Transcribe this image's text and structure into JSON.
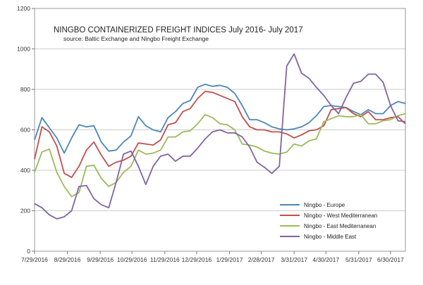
{
  "chart_data": {
    "type": "line",
    "title": "NINGBO CONTAINERIZED FREIGHT INDICES July 2016- July 2017",
    "subtitle": "source: Baltic  Exchange and Ningbo Freight Exchange",
    "xlabel": "",
    "ylabel": "",
    "ylim": [
      0,
      1200
    ],
    "yticks": [
      0,
      200,
      400,
      600,
      800,
      1000,
      1200
    ],
    "grid": true,
    "legend_position": "bottom-right",
    "x_tick_labels": [
      "7/29/2016",
      "8/29/2016",
      "9/29/2016",
      "10/29/2016",
      "11/29/2016",
      "12/29/2016",
      "1/29/2017",
      "2/28/2017",
      "3/31/2017",
      "4/30/2017",
      "5/31/2017",
      "6/30/2017"
    ],
    "x": [
      "2016-07-29",
      "2016-08-05",
      "2016-08-12",
      "2016-08-19",
      "2016-08-26",
      "2016-09-02",
      "2016-09-09",
      "2016-09-16",
      "2016-09-23",
      "2016-09-30",
      "2016-10-07",
      "2016-10-14",
      "2016-10-21",
      "2016-10-28",
      "2016-11-04",
      "2016-11-11",
      "2016-11-18",
      "2016-11-25",
      "2016-12-02",
      "2016-12-09",
      "2016-12-16",
      "2016-12-23",
      "2016-12-30",
      "2017-01-06",
      "2017-01-13",
      "2017-01-20",
      "2017-01-27",
      "2017-02-03",
      "2017-02-10",
      "2017-02-17",
      "2017-02-24",
      "2017-03-03",
      "2017-03-10",
      "2017-03-17",
      "2017-03-24",
      "2017-03-31",
      "2017-04-07",
      "2017-04-14",
      "2017-04-21",
      "2017-04-28",
      "2017-05-05",
      "2017-05-12",
      "2017-05-19",
      "2017-05-26",
      "2017-06-02",
      "2017-06-09",
      "2017-06-16",
      "2017-06-23",
      "2017-06-30",
      "2017-07-07",
      "2017-07-14"
    ],
    "series": [
      {
        "name": "Ningbo - Europe",
        "color": "#4a87b9",
        "values": [
          550,
          660,
          610,
          560,
          485,
          560,
          625,
          615,
          620,
          540,
          495,
          500,
          540,
          570,
          665,
          620,
          600,
          590,
          660,
          690,
          730,
          745,
          810,
          825,
          815,
          820,
          810,
          780,
          720,
          650,
          650,
          635,
          615,
          605,
          600,
          605,
          615,
          635,
          670,
          715,
          720,
          715,
          710,
          690,
          675,
          700,
          680,
          680,
          720,
          740,
          730
        ]
      },
      {
        "name": "Ningbo - West Mediterranean",
        "color": "#c0504d",
        "values": [
          455,
          615,
          590,
          520,
          385,
          365,
          420,
          500,
          540,
          475,
          420,
          440,
          450,
          470,
          535,
          530,
          525,
          550,
          625,
          635,
          690,
          705,
          755,
          790,
          785,
          770,
          755,
          740,
          665,
          615,
          600,
          600,
          590,
          590,
          580,
          560,
          575,
          595,
          600,
          620,
          700,
          705,
          710,
          680,
          665,
          690,
          650,
          650,
          660,
          665,
          630
        ]
      },
      {
        "name": "Ningbo - East Mediterranean",
        "color": "#9bbb59",
        "values": [
          390,
          490,
          505,
          390,
          320,
          270,
          290,
          420,
          425,
          360,
          320,
          340,
          390,
          420,
          500,
          480,
          485,
          500,
          565,
          565,
          590,
          595,
          630,
          675,
          660,
          630,
          625,
          600,
          530,
          525,
          515,
          495,
          485,
          480,
          490,
          530,
          520,
          545,
          555,
          640,
          655,
          670,
          665,
          665,
          675,
          630,
          630,
          645,
          650,
          670,
          680
        ]
      },
      {
        "name": "Ningbo - Middle East",
        "color": "#8064a2",
        "values": [
          235,
          215,
          180,
          160,
          170,
          200,
          320,
          325,
          260,
          230,
          215,
          340,
          480,
          495,
          420,
          330,
          420,
          470,
          480,
          445,
          470,
          470,
          510,
          555,
          590,
          600,
          585,
          585,
          565,
          515,
          440,
          415,
          385,
          420,
          915,
          975,
          880,
          855,
          810,
          770,
          720,
          680,
          760,
          830,
          840,
          875,
          875,
          835,
          720,
          645,
          640
        ]
      }
    ]
  }
}
